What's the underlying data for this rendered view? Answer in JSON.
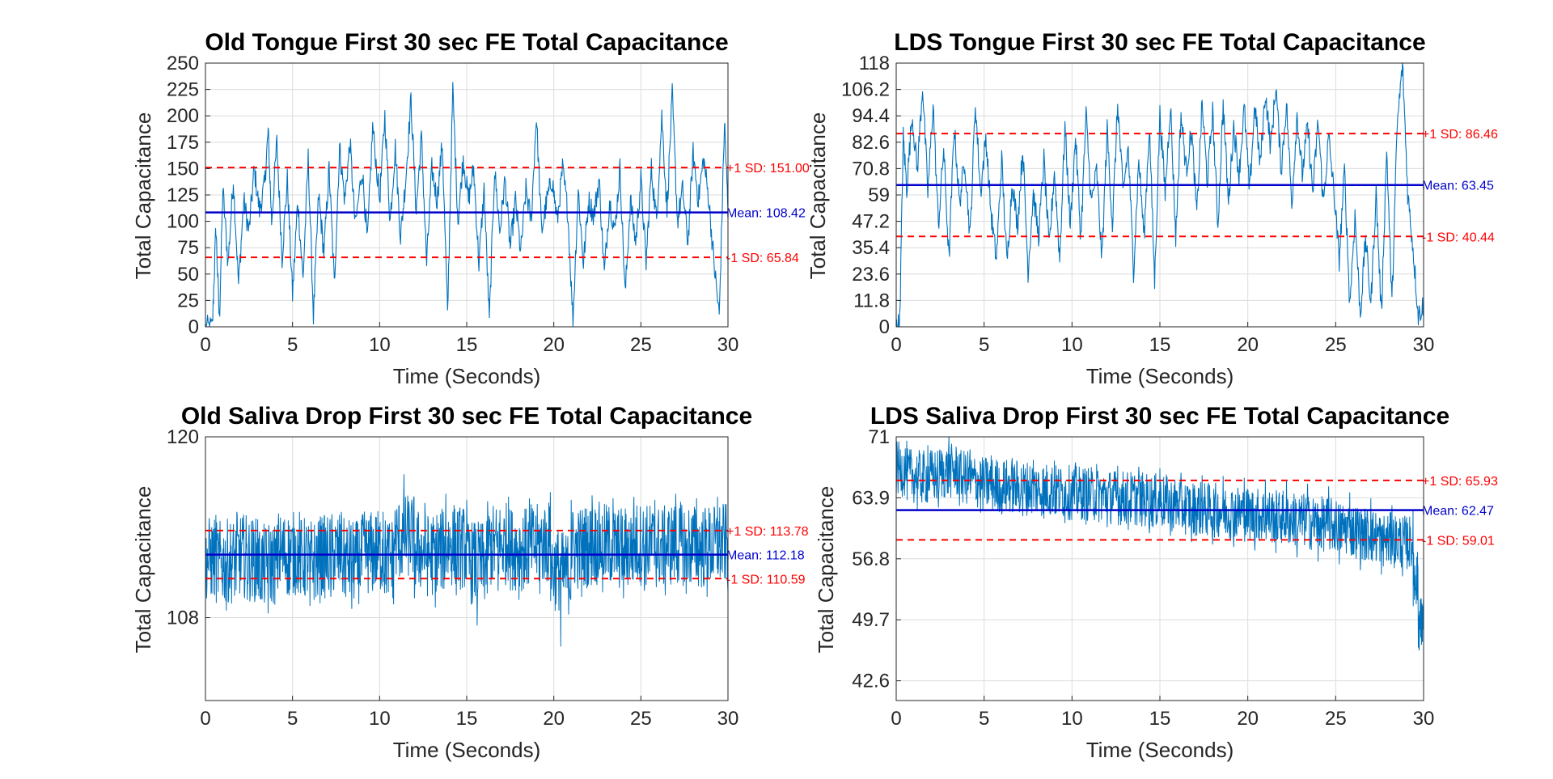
{
  "chart_data": [
    {
      "type": "line",
      "title": "Old Tongue First 30 sec FE Total Capacitance",
      "xlabel": "Time (Seconds)",
      "ylabel": "Total Capacitance",
      "xlim": [
        0,
        30
      ],
      "ylim": [
        0,
        250
      ],
      "xticks": [
        "0",
        "5",
        "10",
        "15",
        "20",
        "25",
        "30"
      ],
      "yticks": [
        "0",
        "25",
        "50",
        "75",
        "100",
        "125",
        "150",
        "175",
        "200",
        "225",
        "250"
      ],
      "grid": true,
      "series_color": "#0072BD",
      "series": [
        {
          "x": [
            0,
            0.4,
            0.6,
            0.8,
            1,
            1.3,
            1.6,
            1.9,
            2.2,
            2.5,
            2.8,
            3.1,
            3.4,
            3.6,
            3.8,
            4.1,
            4.4,
            4.7,
            5,
            5.3,
            5.6,
            5.9,
            6.2,
            6.5,
            6.8,
            7.1,
            7.4,
            7.7,
            8,
            8.3,
            8.6,
            9,
            9.3,
            9.6,
            10,
            10.3,
            10.6,
            10.9,
            11.2,
            11.5,
            11.8,
            12.1,
            12.4,
            12.7,
            13,
            13.3,
            13.6,
            13.9,
            14.2,
            14.5,
            14.8,
            15.1,
            15.4,
            15.7,
            16,
            16.3,
            16.6,
            16.9,
            17.2,
            17.5,
            17.8,
            18.1,
            18.4,
            18.7,
            19,
            19.3,
            19.6,
            19.9,
            20.2,
            20.5,
            20.8,
            21.1,
            21.4,
            21.7,
            22,
            22.3,
            22.6,
            22.9,
            23.2,
            23.5,
            23.8,
            24.1,
            24.4,
            24.7,
            25,
            25.3,
            25.6,
            25.9,
            26.2,
            26.5,
            26.8,
            27.1,
            27.4,
            27.7,
            28,
            28.3,
            28.6,
            28.9,
            29.2,
            29.5,
            29.8,
            30
          ],
          "y": [
            0,
            0,
            95,
            5,
            130,
            60,
            140,
            40,
            120,
            90,
            150,
            110,
            135,
            185,
            100,
            175,
            65,
            140,
            30,
            120,
            45,
            160,
            10,
            125,
            70,
            150,
            40,
            170,
            120,
            175,
            95,
            150,
            80,
            190,
            120,
            200,
            100,
            170,
            85,
            140,
            215,
            110,
            180,
            60,
            150,
            120,
            175,
            10,
            225,
            100,
            160,
            120,
            150,
            60,
            130,
            5,
            150,
            90,
            140,
            75,
            120,
            70,
            130,
            100,
            200,
            90,
            120,
            140,
            100,
            150,
            110,
            5,
            130,
            60,
            120,
            105,
            140,
            50,
            120,
            90,
            150,
            30,
            120,
            80,
            140,
            60,
            150,
            100,
            200,
            110,
            220,
            100,
            130,
            80,
            165,
            120,
            160,
            120,
            60,
            10,
            195,
            110
          ]
        }
      ],
      "reference_lines": [
        {
          "label": "Mean",
          "value": 108.42,
          "text": "Mean: 108.42",
          "color": "#0000CC",
          "style": "solid"
        },
        {
          "label": "+1 SD",
          "value": 151.0,
          "text": "+1 SD: 151.00",
          "color": "#FF0000",
          "style": "dashed"
        },
        {
          "label": "-1 SD",
          "value": 65.84,
          "text": "-1 SD: 65.84",
          "color": "#FF0000",
          "style": "dashed"
        }
      ]
    },
    {
      "type": "line",
      "title": "LDS Tongue First 30 sec FE Total Capacitance",
      "xlabel": "Time (Seconds)",
      "ylabel": "Total Capacitance",
      "xlim": [
        0,
        30
      ],
      "ylim": [
        0,
        118
      ],
      "xticks": [
        "0",
        "5",
        "10",
        "15",
        "20",
        "25",
        "30"
      ],
      "yticks": [
        "0",
        "11.8",
        "23.6",
        "35.4",
        "47.2",
        "59",
        "70.8",
        "82.6",
        "94.4",
        "106.2",
        "118"
      ],
      "grid": true,
      "series_color": "#0072BD",
      "series": [
        {
          "x": [
            0,
            0.2,
            0.4,
            0.6,
            0.9,
            1.2,
            1.5,
            1.8,
            2.1,
            2.4,
            2.7,
            3,
            3.3,
            3.6,
            3.9,
            4.2,
            4.5,
            4.8,
            5.1,
            5.4,
            5.7,
            6,
            6.3,
            6.6,
            6.9,
            7.2,
            7.5,
            7.8,
            8.1,
            8.4,
            8.7,
            9,
            9.3,
            9.6,
            9.9,
            10.2,
            10.5,
            10.8,
            11.1,
            11.4,
            11.7,
            12,
            12.3,
            12.6,
            12.9,
            13.2,
            13.5,
            13.8,
            14.1,
            14.4,
            14.7,
            15,
            15.3,
            15.6,
            15.9,
            16.2,
            16.5,
            16.8,
            17.1,
            17.4,
            17.7,
            18,
            18.3,
            18.6,
            18.9,
            19.2,
            19.5,
            19.8,
            20.1,
            20.4,
            20.7,
            21,
            21.3,
            21.6,
            21.9,
            22.2,
            22.5,
            22.8,
            23.1,
            23.4,
            23.7,
            24,
            24.3,
            24.6,
            24.9,
            25.2,
            25.5,
            25.8,
            26.1,
            26.4,
            26.7,
            27,
            27.3,
            27.6,
            27.9,
            28.2,
            28.5,
            28.8,
            29.1,
            29.4,
            29.7,
            30
          ],
          "y": [
            0,
            2,
            85,
            62,
            95,
            70,
            108,
            60,
            100,
            45,
            80,
            30,
            90,
            55,
            75,
            40,
            100,
            60,
            85,
            50,
            30,
            75,
            28,
            65,
            45,
            80,
            25,
            60,
            40,
            75,
            35,
            70,
            30,
            90,
            45,
            85,
            40,
            95,
            55,
            70,
            30,
            88,
            45,
            100,
            60,
            80,
            25,
            75,
            40,
            90,
            20,
            95,
            60,
            100,
            40,
            95,
            70,
            88,
            50,
            100,
            65,
            96,
            45,
            100,
            55,
            90,
            68,
            98,
            60,
            100,
            72,
            105,
            80,
            108,
            70,
            100,
            55,
            95,
            68,
            90,
            60,
            92,
            55,
            85,
            60,
            30,
            70,
            10,
            50,
            5,
            40,
            10,
            60,
            5,
            80,
            10,
            90,
            118,
            60,
            35,
            5,
            10
          ]
        }
      ],
      "reference_lines": [
        {
          "label": "Mean",
          "value": 63.45,
          "text": "Mean: 63.45",
          "color": "#0000CC",
          "style": "solid"
        },
        {
          "label": "+1 SD",
          "value": 86.46,
          "text": "+1 SD: 86.46",
          "color": "#FF0000",
          "style": "dashed"
        },
        {
          "label": "-1 SD",
          "value": 40.44,
          "text": "-1 SD: 40.44",
          "color": "#FF0000",
          "style": "dashed"
        }
      ]
    },
    {
      "type": "line",
      "title": "Old Saliva Drop First 30 sec FE Total Capacitance",
      "xlabel": "Time (Seconds)",
      "ylabel": "Total Capacitance",
      "xlim": [
        0,
        30
      ],
      "ylim": [
        102.5,
        120
      ],
      "xticks": [
        "0",
        "5",
        "10",
        "15",
        "20",
        "25",
        "30"
      ],
      "yticks": [
        "108",
        "120"
      ],
      "grid": true,
      "series_color": "#0072BD",
      "series": [
        {
          "x": [
            0,
            0.6,
            1.2,
            1.8,
            2.4,
            3,
            3.6,
            4.2,
            4.8,
            5.4,
            6,
            6.6,
            7.2,
            7.8,
            8.4,
            9,
            9.6,
            10.2,
            10.8,
            11.4,
            12,
            12.6,
            13.2,
            13.8,
            14.4,
            15,
            15.6,
            16.2,
            16.8,
            17.4,
            18,
            18.6,
            19.2,
            19.8,
            20.4,
            21,
            21.6,
            22.2,
            22.8,
            23.4,
            24,
            24.6,
            25.2,
            25.8,
            26.4,
            27,
            27.6,
            28.2,
            28.8,
            29.4,
            30
          ],
          "y": [
            109,
            114.8,
            108.5,
            115,
            109.2,
            114.5,
            108.3,
            114.9,
            109.5,
            115,
            108.8,
            114.7,
            109.4,
            115,
            108.6,
            114.8,
            109.8,
            115,
            108.9,
            117.5,
            109.3,
            115.6,
            108.7,
            116.2,
            109.5,
            115.8,
            107.5,
            115.7,
            109.8,
            116,
            109.2,
            115.9,
            109.6,
            116.3,
            106.1,
            115.8,
            109.4,
            116.1,
            109.7,
            115.9,
            109.3,
            116,
            109.8,
            115.8,
            109.5,
            116.2,
            109.6,
            115.9,
            109.4,
            116,
            109.7
          ]
        }
      ],
      "reference_lines": [
        {
          "label": "Mean",
          "value": 112.18,
          "text": "Mean: 112.18",
          "color": "#0000CC",
          "style": "solid"
        },
        {
          "label": "+1 SD",
          "value": 113.78,
          "text": "+1 SD: 113.78",
          "color": "#FF0000",
          "style": "dashed"
        },
        {
          "label": "-1 SD",
          "value": 110.59,
          "text": "-1 SD: 110.59",
          "color": "#FF0000",
          "style": "dashed"
        }
      ]
    },
    {
      "type": "line",
      "title": "LDS Saliva Drop First 30 sec FE Total Capacitance",
      "xlabel": "Time (Seconds)",
      "ylabel": "Total Capacitance",
      "xlim": [
        0,
        30
      ],
      "ylim": [
        40.3,
        71
      ],
      "xticks": [
        "0",
        "5",
        "10",
        "15",
        "20",
        "25",
        "30"
      ],
      "yticks": [
        "42.6",
        "49.7",
        "56.8",
        "63.9",
        "71"
      ],
      "grid": true,
      "series_color": "#0072BD",
      "series": [
        {
          "x": [
            0,
            0.6,
            1.2,
            1.8,
            2.4,
            3,
            3.6,
            4.2,
            4.8,
            5.4,
            6,
            6.6,
            7.2,
            7.8,
            8.4,
            9,
            9.6,
            10.2,
            10.8,
            11.4,
            12,
            12.6,
            13.2,
            13.8,
            14.4,
            15,
            15.6,
            16.2,
            16.8,
            17.4,
            18,
            18.6,
            19.2,
            19.8,
            20.4,
            21,
            21.6,
            22.2,
            22.8,
            23.4,
            24,
            24.6,
            25.2,
            25.8,
            26.4,
            27,
            27.6,
            28.2,
            28.8,
            29.4,
            29.7,
            30
          ],
          "y": [
            64,
            70.5,
            62.5,
            70,
            62.8,
            71,
            63,
            69.5,
            62.2,
            68.8,
            62,
            68.5,
            61.8,
            68.3,
            61.5,
            68.2,
            61,
            68,
            60.8,
            67.8,
            60.5,
            67.6,
            60.2,
            67.5,
            59.8,
            67.3,
            59.5,
            66.8,
            58.8,
            66.5,
            58.5,
            66.4,
            58.2,
            66.2,
            57.8,
            66,
            57.5,
            65.8,
            57,
            65.5,
            56.5,
            65.2,
            56.2,
            64.5,
            55.5,
            63.8,
            55,
            63,
            54.8,
            62.5,
            46.5,
            52
          ]
        }
      ],
      "reference_lines": [
        {
          "label": "Mean",
          "value": 62.47,
          "text": "Mean: 62.47",
          "color": "#0000CC",
          "style": "solid"
        },
        {
          "label": "+1 SD",
          "value": 65.93,
          "text": "+1 SD: 65.93",
          "color": "#FF0000",
          "style": "dashed"
        },
        {
          "label": "-1 SD",
          "value": 59.01,
          "text": "-1 SD: 59.01",
          "color": "#FF0000",
          "style": "dashed"
        }
      ]
    }
  ]
}
